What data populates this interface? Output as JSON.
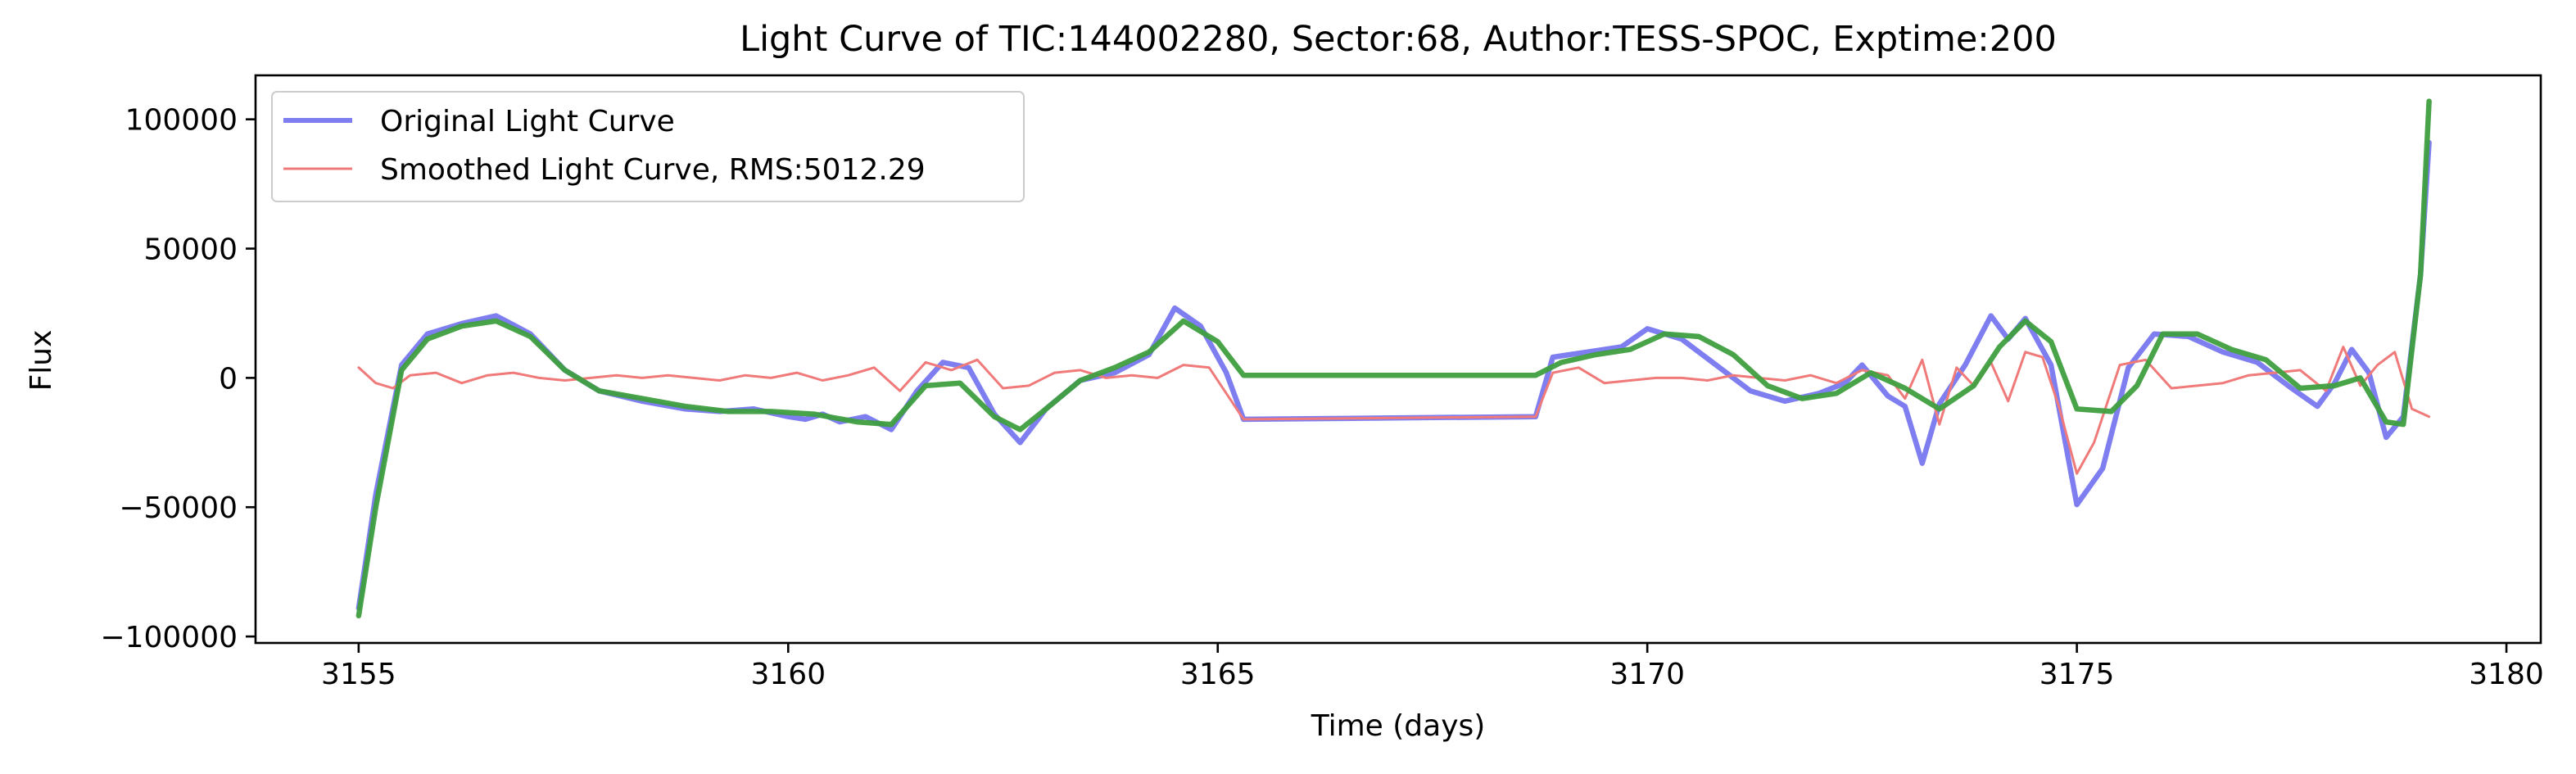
{
  "chart_data": {
    "type": "line",
    "title": "Light Curve of TIC:144002280, Sector:68, Author:TESS-SPOC, Exptime:200",
    "xlabel": "Time (days)",
    "ylabel": "Flux",
    "xlim": [
      3153.8,
      3180.4
    ],
    "ylim": [
      -102500,
      117000
    ],
    "grid": false,
    "legend_position": "upper-left",
    "x_ticks": [
      {
        "value": 3155,
        "label": "3155"
      },
      {
        "value": 3160,
        "label": "3160"
      },
      {
        "value": 3165,
        "label": "3165"
      },
      {
        "value": 3170,
        "label": "3170"
      },
      {
        "value": 3175,
        "label": "3175"
      },
      {
        "value": 3180,
        "label": "3180"
      }
    ],
    "y_ticks": [
      {
        "value": 100000,
        "label": "100000"
      },
      {
        "value": 50000,
        "label": "50000"
      },
      {
        "value": 0,
        "label": "0"
      },
      {
        "value": -50000,
        "label": "−50000"
      },
      {
        "value": -100000,
        "label": "−100000"
      }
    ],
    "series": [
      {
        "name": "Original Light Curve",
        "color": "#7070f0",
        "x": [
          3155.0,
          3155.2,
          3155.5,
          3155.8,
          3156.2,
          3156.6,
          3157.0,
          3157.4,
          3157.8,
          3158.3,
          3158.8,
          3159.2,
          3159.6,
          3160.0,
          3160.2,
          3160.4,
          3160.6,
          3160.9,
          3161.2,
          3161.5,
          3161.8,
          3162.1,
          3162.4,
          3162.7,
          3163.0,
          3163.4,
          3163.8,
          3164.2,
          3164.5,
          3164.8,
          3165.1,
          3165.3,
          3168.7,
          3168.9,
          3169.3,
          3169.7,
          3170.0,
          3170.4,
          3170.8,
          3171.2,
          3171.6,
          3172.0,
          3172.3,
          3172.5,
          3172.8,
          3173.0,
          3173.2,
          3173.4,
          3173.7,
          3174.0,
          3174.2,
          3174.4,
          3174.7,
          3175.0,
          3175.3,
          3175.6,
          3175.9,
          3176.3,
          3176.7,
          3177.1,
          3177.5,
          3177.8,
          3178.0,
          3178.2,
          3178.4,
          3178.6,
          3178.8,
          3179.0,
          3179.1
        ],
        "values": [
          -89000,
          -45000,
          5000,
          17000,
          21000,
          24000,
          17000,
          3000,
          -5000,
          -9000,
          -12000,
          -13000,
          -12000,
          -15000,
          -16000,
          -14000,
          -17000,
          -15000,
          -20000,
          -5000,
          6000,
          4000,
          -14000,
          -25000,
          -12000,
          -1000,
          2000,
          9000,
          27000,
          20000,
          2000,
          -16000,
          -15000,
          8000,
          10000,
          12000,
          19000,
          15000,
          5000,
          -5000,
          -9000,
          -6000,
          -2000,
          5000,
          -7000,
          -11000,
          -33000,
          -10000,
          5000,
          24000,
          15000,
          23000,
          5000,
          -49000,
          -35000,
          4000,
          17000,
          16000,
          10000,
          6000,
          -4000,
          -11000,
          -2000,
          11000,
          2000,
          -23000,
          -15000,
          40000,
          91000
        ]
      },
      {
        "name": "Smoothed Light Curve, RMS:5012.29",
        "color": "#f07a7a",
        "x": [
          3155.0,
          3155.2,
          3155.4,
          3155.6,
          3155.9,
          3156.2,
          3156.5,
          3156.8,
          3157.1,
          3157.4,
          3157.7,
          3158.0,
          3158.3,
          3158.6,
          3158.9,
          3159.2,
          3159.5,
          3159.8,
          3160.1,
          3160.4,
          3160.7,
          3161.0,
          3161.3,
          3161.6,
          3161.9,
          3162.2,
          3162.5,
          3162.8,
          3163.1,
          3163.4,
          3163.7,
          3164.0,
          3164.3,
          3164.6,
          3164.9,
          3165.1,
          3165.3,
          3168.7,
          3168.9,
          3169.2,
          3169.5,
          3169.8,
          3170.1,
          3170.4,
          3170.7,
          3171.0,
          3171.3,
          3171.6,
          3171.9,
          3172.2,
          3172.5,
          3172.8,
          3173.0,
          3173.2,
          3173.4,
          3173.6,
          3173.8,
          3174.0,
          3174.2,
          3174.4,
          3174.6,
          3174.8,
          3175.0,
          3175.2,
          3175.5,
          3175.8,
          3176.1,
          3176.4,
          3176.7,
          3177.0,
          3177.3,
          3177.6,
          3177.9,
          3178.1,
          3178.3,
          3178.5,
          3178.7,
          3178.9,
          3179.1
        ],
        "values": [
          4000,
          -2000,
          -4000,
          1000,
          2000,
          -2000,
          1000,
          2000,
          0,
          -1000,
          0,
          1000,
          0,
          1000,
          0,
          -1000,
          1000,
          0,
          2000,
          -1000,
          1000,
          4000,
          -5000,
          6000,
          3000,
          7000,
          -4000,
          -3000,
          2000,
          3000,
          0,
          1000,
          0,
          5000,
          4000,
          -6000,
          -16000,
          -15000,
          2000,
          4000,
          -2000,
          -1000,
          0,
          0,
          -1000,
          1000,
          0,
          -1000,
          1000,
          -2000,
          3000,
          1000,
          -8000,
          7000,
          -18000,
          4000,
          -3000,
          6000,
          -9000,
          10000,
          8000,
          -12000,
          -37000,
          -25000,
          5000,
          7000,
          -4000,
          -3000,
          -2000,
          1000,
          2000,
          3000,
          -5000,
          12000,
          -3000,
          5000,
          10000,
          -12000,
          -15000
        ]
      },
      {
        "name": "",
        "color": "#3f9f3f",
        "x": [
          3155.0,
          3155.2,
          3155.5,
          3155.8,
          3156.2,
          3156.6,
          3157.0,
          3157.4,
          3157.8,
          3158.3,
          3158.8,
          3159.3,
          3159.8,
          3160.3,
          3160.8,
          3161.2,
          3161.6,
          3162.0,
          3162.4,
          3162.7,
          3163.0,
          3163.4,
          3163.8,
          3164.2,
          3164.6,
          3165.0,
          3165.3,
          3166.5,
          3167.5,
          3168.7,
          3169.0,
          3169.4,
          3169.8,
          3170.2,
          3170.6,
          3171.0,
          3171.4,
          3171.8,
          3172.2,
          3172.6,
          3173.0,
          3173.4,
          3173.8,
          3174.1,
          3174.4,
          3174.7,
          3175.0,
          3175.4,
          3175.7,
          3176.0,
          3176.4,
          3176.8,
          3177.2,
          3177.6,
          3178.0,
          3178.3,
          3178.6,
          3178.8,
          3179.0,
          3179.1
        ],
        "values": [
          -92000,
          -50000,
          3000,
          15000,
          20000,
          22000,
          16000,
          3000,
          -5000,
          -8000,
          -11000,
          -13000,
          -13000,
          -14000,
          -17000,
          -18000,
          -3000,
          -2000,
          -15000,
          -20000,
          -12000,
          -1000,
          4000,
          10000,
          22000,
          14000,
          1000,
          1000,
          1000,
          1000,
          6000,
          9000,
          11000,
          17000,
          16000,
          9000,
          -3000,
          -8000,
          -6000,
          2000,
          -4000,
          -12000,
          -3000,
          12000,
          22000,
          14000,
          -12000,
          -13000,
          -3000,
          17000,
          17000,
          11000,
          7000,
          -4000,
          -3000,
          0,
          -17000,
          -18000,
          40000,
          107000
        ]
      }
    ]
  }
}
